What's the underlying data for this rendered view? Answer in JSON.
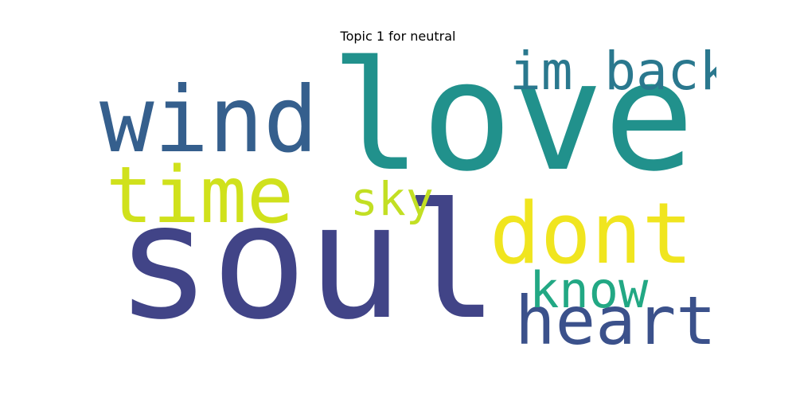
{
  "chart_data": {
    "type": "wordcloud",
    "title": "Topic 1 for neutral",
    "words": [
      {
        "text": "soul",
        "weight": 1.0,
        "color": "#414487"
      },
      {
        "text": "love",
        "weight": 0.88,
        "color": "#21918c"
      },
      {
        "text": "wind",
        "weight": 0.6,
        "color": "#355f8d"
      },
      {
        "text": "time",
        "weight": 0.5,
        "color": "#d0e11c"
      },
      {
        "text": "dont",
        "weight": 0.55,
        "color": "#f0e51f"
      },
      {
        "text": "heart",
        "weight": 0.42,
        "color": "#3b518b"
      },
      {
        "text": "im back",
        "weight": 0.3,
        "color": "#2a788e"
      },
      {
        "text": "know",
        "weight": 0.3,
        "color": "#22a884"
      },
      {
        "text": "sky",
        "weight": 0.25,
        "color": "#c2df23"
      }
    ]
  }
}
